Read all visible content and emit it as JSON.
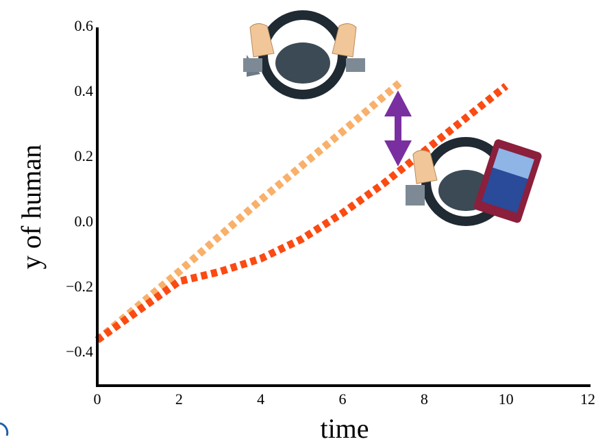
{
  "chart_data": {
    "type": "line",
    "x_label": "time",
    "y_label": "y of human",
    "xlim": [
      0,
      12
    ],
    "xticks": [
      0,
      2,
      4,
      6,
      8,
      10,
      12
    ],
    "ylim": [
      -0.5,
      0.6
    ],
    "yticks": [
      {
        "value": -0.4,
        "label": "−0.4"
      },
      {
        "value": -0.2,
        "label": "−0.2"
      },
      {
        "value": 0,
        "label": "0.0"
      },
      0.2,
      0.4,
      0.6
    ],
    "grid": false,
    "series": [
      {
        "color": "#f8b06a",
        "x": [
          0,
          2,
          4,
          6,
          7.4
        ],
        "values": [
          -0.36,
          -0.15,
          0.07,
          0.28,
          0.43
        ]
      },
      {
        "color": "#fb4a12",
        "x": [
          0,
          1,
          2,
          3,
          4,
          5,
          6,
          7,
          8,
          9,
          10
        ],
        "values": [
          -0.36,
          -0.27,
          -0.18,
          -0.15,
          -0.11,
          -0.05,
          0.03,
          0.12,
          0.22,
          0.32,
          0.42
        ]
      }
    ]
  }
}
